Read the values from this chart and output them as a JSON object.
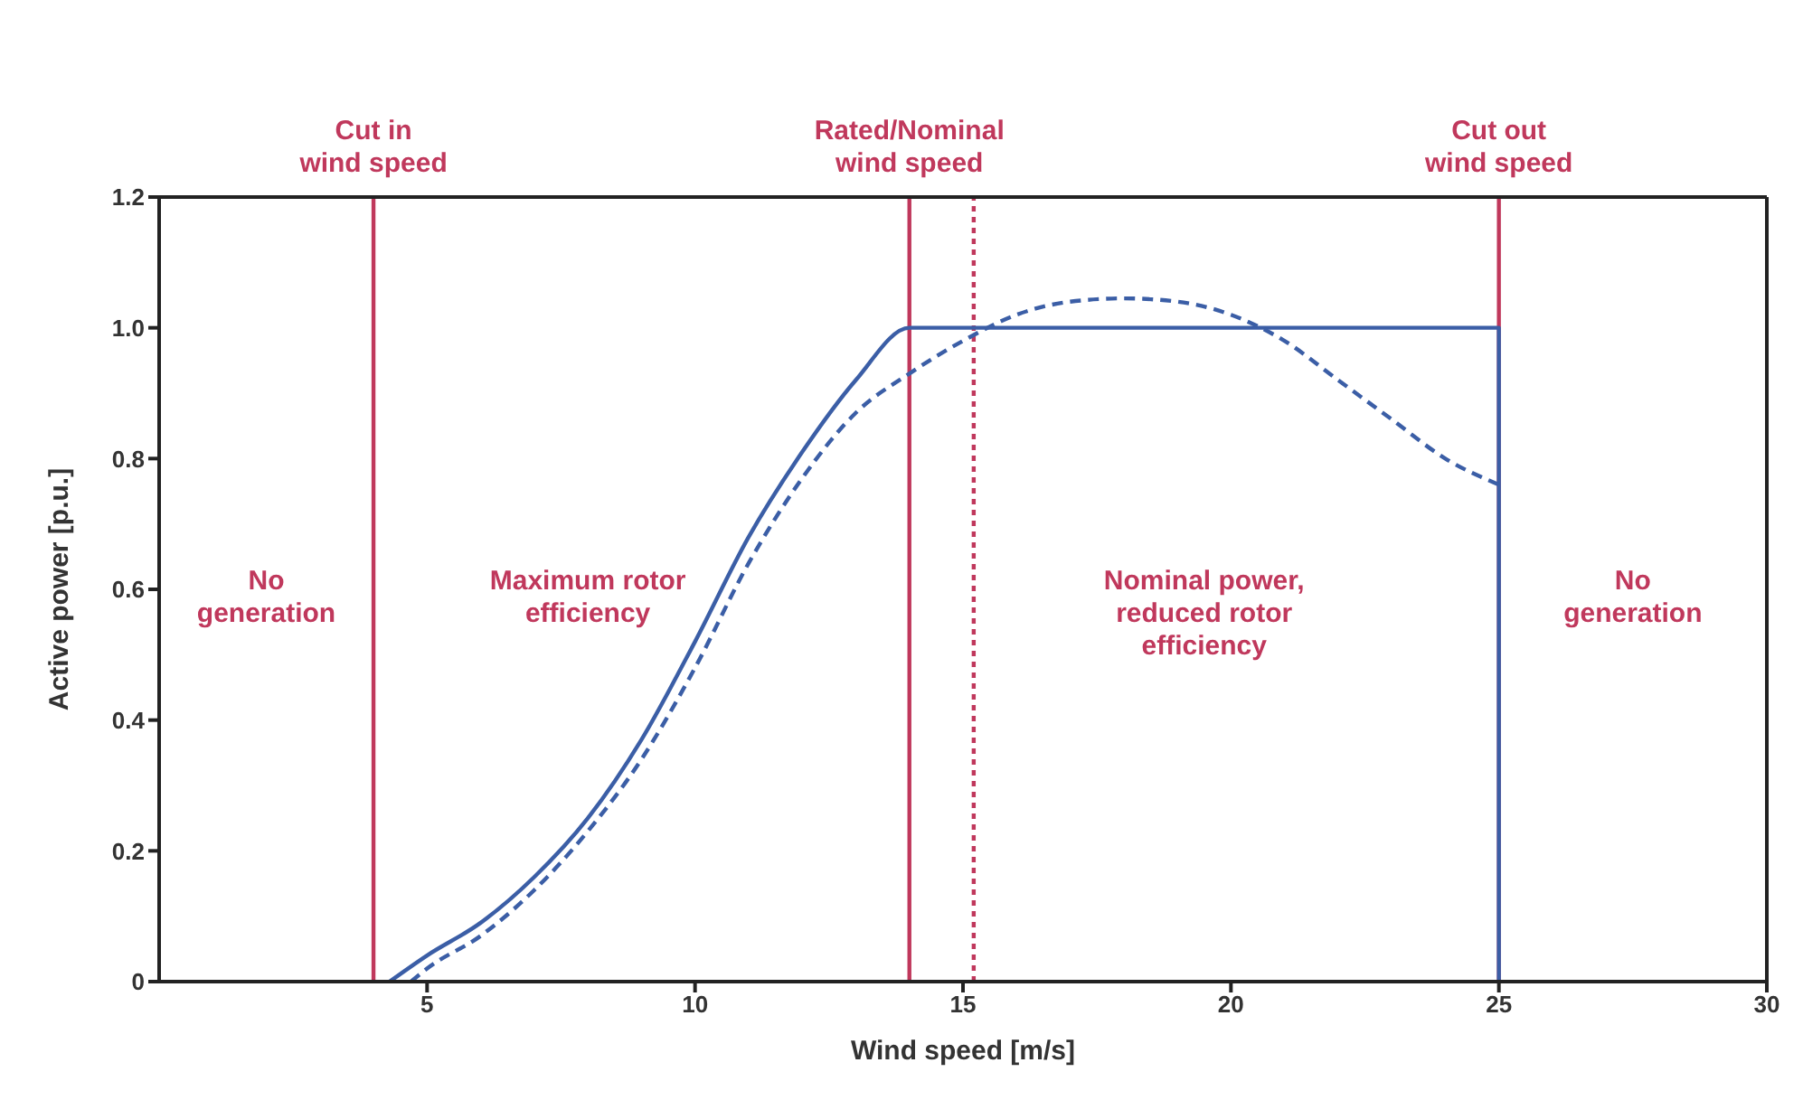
{
  "chart_data": {
    "type": "line",
    "xlabel": "Wind speed [m/s]",
    "ylabel": "Active power [p.u.]",
    "xlim": [
      0,
      30
    ],
    "xticks": [
      5,
      10,
      15,
      20,
      25,
      30
    ],
    "ylim": [
      0,
      1.2
    ],
    "yticks": [
      0,
      0.2,
      0.4,
      0.6,
      0.8,
      {
        "value": 1,
        "label": "1.0"
      },
      1.2
    ],
    "marker": "none",
    "series": [
      {
        "color": "#3b5ea6",
        "line_style": "solid",
        "x": [
          4.3,
          5,
          6,
          7,
          8,
          9,
          10,
          11,
          12,
          13,
          14,
          25,
          25
        ],
        "values": [
          0,
          0.04,
          0.09,
          0.16,
          0.25,
          0.37,
          0.52,
          0.68,
          0.81,
          0.92,
          1.0,
          1.0,
          0
        ]
      },
      {
        "color": "#3b5ea6",
        "line_style": "dashed",
        "x": [
          4.7,
          5,
          6,
          7,
          8,
          9,
          10,
          11,
          12,
          13,
          14,
          15,
          16,
          17,
          18,
          19,
          20,
          21,
          22,
          23,
          24,
          25
        ],
        "values": [
          0,
          0.02,
          0.07,
          0.14,
          0.23,
          0.34,
          0.48,
          0.64,
          0.77,
          0.87,
          0.93,
          0.98,
          1.02,
          1.04,
          1.045,
          1.04,
          1.02,
          0.98,
          0.92,
          0.86,
          0.8,
          0.76
        ]
      }
    ],
    "ref_lines": [
      {
        "axis": "x",
        "value": 4,
        "label": "Cut in\nwind speed",
        "color": "#c0385c",
        "line_style": "solid"
      },
      {
        "axis": "x",
        "value": 14,
        "label": "Rated/Nominal\nwind speed",
        "color": "#c0385c",
        "line_style": "solid"
      },
      {
        "axis": "x",
        "value": 15.2,
        "color": "#c0385c",
        "line_style": "dotted"
      },
      {
        "axis": "x",
        "value": 25,
        "label": "Cut out\nwind speed",
        "color": "#c0385c",
        "line_style": "solid"
      }
    ],
    "annotations": [
      "No\ngeneration",
      "Maximum rotor\nefficiency",
      "Nominal power,\nreduced rotor\nefficiency",
      "No\ngeneration"
    ]
  }
}
